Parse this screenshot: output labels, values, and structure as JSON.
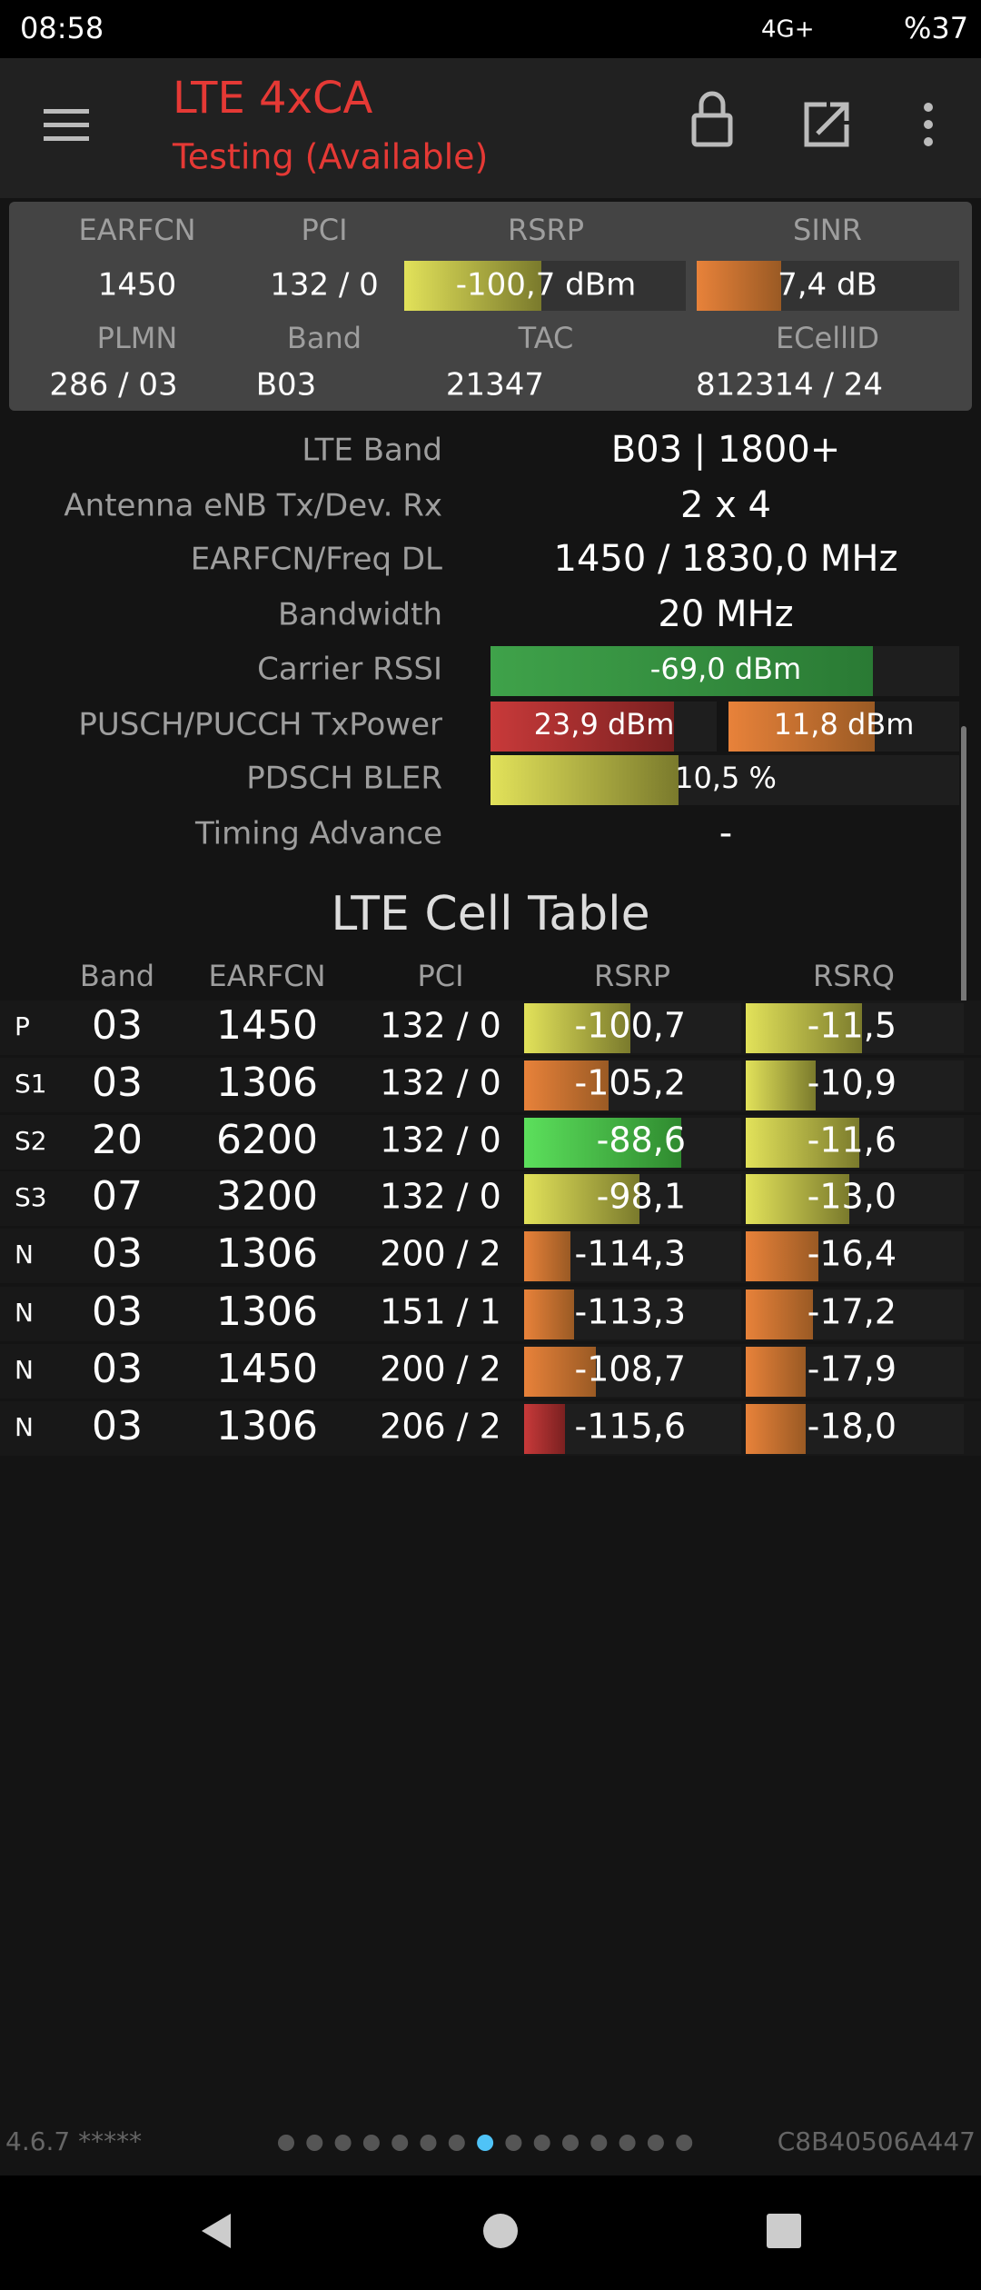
{
  "status_bar": {
    "time": "08:58",
    "network": "4G+",
    "battery": "%37"
  },
  "app_bar": {
    "title": "LTE 4xCA",
    "subtitle": "Testing (Available)"
  },
  "summary": {
    "labels_1": [
      "EARFCN",
      "PCI",
      "RSRP",
      "SINR"
    ],
    "values_1": [
      "1450",
      "132 / 0",
      "-100,7 dBm",
      "7,4 dB"
    ],
    "labels_2": [
      "PLMN",
      "Band",
      "TAC",
      "ECellID"
    ],
    "values_2": [
      "286 / 03",
      "B03",
      "21347",
      "812314 / 24"
    ]
  },
  "details": [
    {
      "label": "LTE Band",
      "value": "B03 | 1800+"
    },
    {
      "label": "Antenna eNB Tx/Dev. Rx",
      "value": "2 x 4"
    },
    {
      "label": "EARFCN/Freq DL",
      "value": "1450 / 1830,0 MHz"
    },
    {
      "label": "Bandwidth",
      "value": "20 MHz"
    },
    {
      "label": "Carrier RSSI",
      "value": "-69,0 dBm"
    },
    {
      "label": "PUSCH/PUCCH TxPower",
      "value": "23,9 dBm",
      "value_2": "11,8 dBm"
    },
    {
      "label": "PDSCH BLER",
      "value": "10,5 %"
    },
    {
      "label": "Timing Advance",
      "value": "-"
    }
  ],
  "cell_table": {
    "title": "LTE Cell Table",
    "headers": [
      "Band",
      "EARFCN",
      "PCI",
      "RSRP",
      "RSRQ"
    ],
    "rows": [
      [
        "P",
        "03",
        "1450",
        "132 / 0",
        "-100,7",
        "-11,5"
      ],
      [
        "S1",
        "03",
        "1306",
        "132 / 0",
        "-105,2",
        "-10,9"
      ],
      [
        "S2",
        "20",
        "6200",
        "132 / 0",
        "-88,6",
        "-11,6"
      ],
      [
        "S3",
        "07",
        "3200",
        "132 / 0",
        "-98,1",
        "-13,0"
      ],
      [
        "N",
        "03",
        "1306",
        "200 / 2",
        "-114,3",
        "-16,4"
      ],
      [
        "N",
        "03",
        "1306",
        "151 / 1",
        "-113,3",
        "-17,2"
      ],
      [
        "N",
        "03",
        "1450",
        "200 / 2",
        "-108,7",
        "-17,9"
      ],
      [
        "N",
        "03",
        "1306",
        "206 / 2",
        "-115,6",
        "-18,0"
      ]
    ]
  },
  "footer": {
    "version": "4.6.7 *****",
    "device_id": "C8B40506A447"
  }
}
